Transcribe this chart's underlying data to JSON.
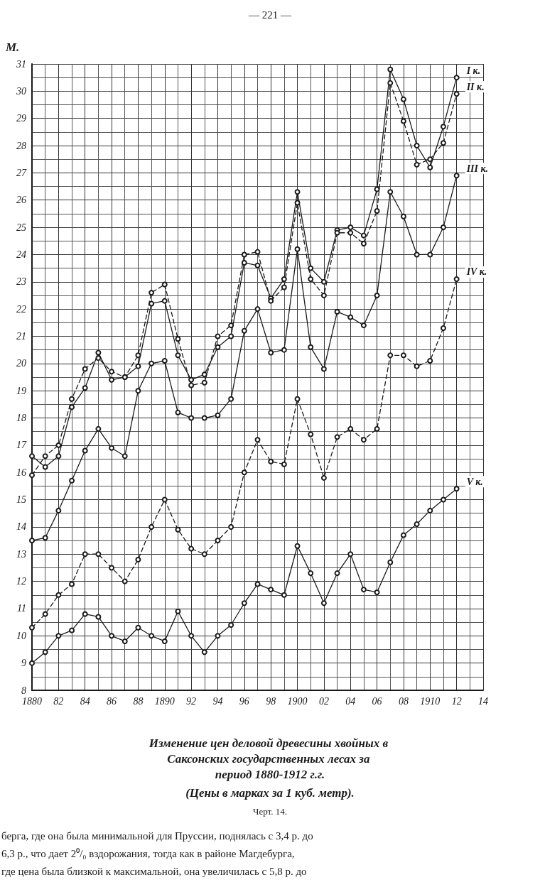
{
  "chart_data": {
    "type": "line",
    "title": "Изменение цен деловой древесины хвойных в Саксонских государственных лесах за период 1880-1912 г.г.",
    "subtitle": "(Цены в марках за 1 куб. метр).",
    "ylabel": "М.",
    "x": [
      1880,
      1881,
      1882,
      1883,
      1884,
      1885,
      1886,
      1887,
      1888,
      1889,
      1890,
      1891,
      1892,
      1893,
      1894,
      1895,
      1896,
      1897,
      1898,
      1899,
      1900,
      1901,
      1902,
      1903,
      1904,
      1905,
      1906,
      1907,
      1908,
      1909,
      1910,
      1911,
      1912
    ],
    "series": [
      {
        "name": "I к.",
        "color": "#1a1a1a",
        "line_style": "solid",
        "values": [
          16.6,
          16.2,
          16.6,
          18.4,
          19.1,
          20.4,
          19.4,
          19.5,
          19.9,
          22.2,
          22.3,
          20.3,
          19.4,
          19.6,
          20.6,
          21.0,
          23.7,
          23.6,
          22.4,
          23.1,
          26.3,
          23.5,
          23.0,
          24.9,
          25.0,
          24.7,
          26.4,
          30.8,
          29.7,
          28.0,
          27.2,
          28.7,
          30.5
        ]
      },
      {
        "name": "II к.",
        "color": "#1a1a1a",
        "line_style": "dashed",
        "values": [
          15.9,
          16.6,
          17.0,
          18.7,
          19.8,
          20.2,
          19.7,
          19.5,
          20.3,
          22.6,
          22.9,
          20.9,
          19.2,
          19.3,
          21.0,
          21.4,
          24.0,
          24.1,
          22.3,
          22.8,
          25.9,
          23.1,
          22.5,
          24.8,
          24.8,
          24.4,
          25.6,
          30.3,
          28.9,
          27.3,
          27.5,
          28.1,
          29.9
        ]
      },
      {
        "name": "III к.",
        "color": "#1a1a1a",
        "line_style": "solid",
        "values": [
          13.5,
          13.6,
          14.6,
          15.7,
          16.8,
          17.6,
          16.9,
          16.6,
          19.0,
          20.0,
          20.1,
          18.2,
          18.0,
          18.0,
          18.1,
          18.7,
          21.2,
          22.0,
          20.4,
          20.5,
          24.2,
          20.6,
          19.8,
          21.9,
          21.7,
          21.4,
          22.5,
          26.3,
          25.4,
          24.0,
          24.0,
          25.0,
          26.9
        ]
      },
      {
        "name": "IV к.",
        "color": "#1a1a1a",
        "line_style": "dashed",
        "values": [
          10.3,
          10.8,
          11.5,
          11.9,
          13.0,
          13.0,
          12.5,
          12.0,
          12.8,
          14.0,
          15.0,
          13.9,
          13.2,
          13.0,
          13.5,
          14.0,
          16.0,
          17.2,
          16.4,
          16.3,
          18.7,
          17.4,
          15.8,
          17.3,
          17.6,
          17.2,
          17.6,
          20.3,
          20.3,
          19.9,
          20.1,
          21.3,
          23.1
        ]
      },
      {
        "name": "V к.",
        "color": "#1a1a1a",
        "line_style": "solid",
        "values": [
          9.0,
          9.4,
          10.0,
          10.2,
          10.8,
          10.7,
          10.0,
          9.8,
          10.3,
          10.0,
          9.8,
          10.9,
          10.0,
          9.4,
          10.0,
          10.4,
          11.2,
          11.9,
          11.7,
          11.5,
          13.3,
          12.3,
          11.2,
          12.3,
          13.0,
          11.7,
          11.6,
          12.7,
          13.7,
          14.1,
          14.6,
          15.0,
          15.4
        ]
      }
    ],
    "xlim": [
      1880,
      1914
    ],
    "xticks": [
      {
        "value": 1880,
        "label": "1880"
      },
      {
        "value": 1882,
        "label": "82"
      },
      {
        "value": 1884,
        "label": "84"
      },
      {
        "value": 1886,
        "label": "86"
      },
      {
        "value": 1888,
        "label": "88"
      },
      {
        "value": 1890,
        "label": "1890"
      },
      {
        "value": 1892,
        "label": "92"
      },
      {
        "value": 1894,
        "label": "94"
      },
      {
        "value": 1896,
        "label": "96"
      },
      {
        "value": 1898,
        "label": "98"
      },
      {
        "value": 1900,
        "label": "1900"
      },
      {
        "value": 1902,
        "label": "02"
      },
      {
        "value": 1904,
        "label": "04"
      },
      {
        "value": 1906,
        "label": "06"
      },
      {
        "value": 1908,
        "label": "08"
      },
      {
        "value": 1910,
        "label": "1910"
      },
      {
        "value": 1912,
        "label": "12"
      },
      {
        "value": 1914,
        "label": "14"
      }
    ],
    "ylim": [
      8,
      31
    ],
    "yticks": [
      8,
      9,
      10,
      11,
      12,
      13,
      14,
      15,
      16,
      17,
      18,
      19,
      20,
      21,
      22,
      23,
      24,
      25,
      26,
      27,
      28,
      29,
      30,
      31
    ],
    "grid": true,
    "marker": "circle",
    "annotations": [
      "— 221 —",
      "Черт. 14.",
      "берга, где она была минимальной для Пруссии, поднялась с 3,4 р. до",
      "6,3 р., что дает 2⁰/₀ вздорожания, тогда как в районе Магдебурга,",
      "где цена была близкой к максимальной, она увеличилась с 5,8 р. до"
    ]
  }
}
